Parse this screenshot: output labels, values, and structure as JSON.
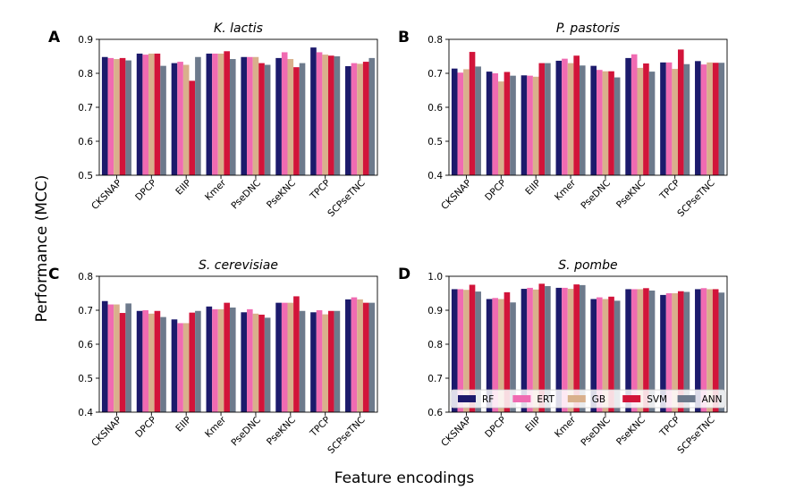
{
  "figure": {
    "ylabel": "Performance (MCC)",
    "xlabel": "Feature encodings"
  },
  "legend": {
    "location": "bottom, inside panel D",
    "entries": [
      "RF",
      "ERT",
      "GB",
      "SVM",
      "ANN"
    ]
  },
  "colors": {
    "RF": "#1c1a6c",
    "ERT": "#f06bb2",
    "GB": "#d9b08c",
    "SVM": "#d2143a",
    "ANN": "#6d7a8c"
  },
  "chart_data": [
    {
      "type": "bar",
      "panel_label": "A",
      "title": "K. lactis",
      "categories": [
        "CKSNAP",
        "DPCP",
        "EIIP",
        "Kmer",
        "PseDNC",
        "PseKNC",
        "TPCP",
        "SCPseTNC"
      ],
      "ylim": [
        0.5,
        0.9
      ],
      "yticks": [
        "0.5",
        "0.6",
        "0.7",
        "0.8",
        "0.9"
      ],
      "series": [
        {
          "name": "RF",
          "values": [
            0.848,
            0.858,
            0.83,
            0.858,
            0.848,
            0.845,
            0.876,
            0.821
          ]
        },
        {
          "name": "ERT",
          "values": [
            0.845,
            0.855,
            0.834,
            0.858,
            0.848,
            0.862,
            0.862,
            0.83
          ]
        },
        {
          "name": "GB",
          "values": [
            0.842,
            0.858,
            0.825,
            0.858,
            0.848,
            0.842,
            0.855,
            0.828
          ]
        },
        {
          "name": "SVM",
          "values": [
            0.845,
            0.858,
            0.778,
            0.865,
            0.83,
            0.818,
            0.852,
            0.834
          ]
        },
        {
          "name": "ANN",
          "values": [
            0.838,
            0.822,
            0.848,
            0.842,
            0.825,
            0.83,
            0.85,
            0.845
          ]
        }
      ]
    },
    {
      "type": "bar",
      "panel_label": "B",
      "title": "P. pastoris",
      "categories": [
        "CKSNAP",
        "DPCP",
        "EIIP",
        "Kmer",
        "PseDNC",
        "PseKNC",
        "TPCP",
        "SCPseTNC"
      ],
      "ylim": [
        0.4,
        0.8
      ],
      "yticks": [
        "0.4",
        "0.5",
        "0.6",
        "0.7",
        "0.8"
      ],
      "series": [
        {
          "name": "RF",
          "values": [
            0.714,
            0.705,
            0.694,
            0.737,
            0.722,
            0.745,
            0.732,
            0.736
          ]
        },
        {
          "name": "ERT",
          "values": [
            0.702,
            0.7,
            0.693,
            0.743,
            0.71,
            0.756,
            0.732,
            0.726
          ]
        },
        {
          "name": "GB",
          "values": [
            0.712,
            0.676,
            0.69,
            0.73,
            0.706,
            0.716,
            0.713,
            0.732
          ]
        },
        {
          "name": "SVM",
          "values": [
            0.763,
            0.704,
            0.73,
            0.752,
            0.706,
            0.729,
            0.77,
            0.731
          ]
        },
        {
          "name": "ANN",
          "values": [
            0.72,
            0.693,
            0.73,
            0.723,
            0.688,
            0.705,
            0.727,
            0.731
          ]
        }
      ]
    },
    {
      "type": "bar",
      "panel_label": "C",
      "title": "S. cerevisiae",
      "categories": [
        "CKSNAP",
        "DPCP",
        "EIIP",
        "Kmer",
        "PseDNC",
        "PseKNC",
        "TPCP",
        "SCPseTNC"
      ],
      "ylim": [
        0.4,
        0.8
      ],
      "yticks": [
        "0.4",
        "0.5",
        "0.6",
        "0.7",
        "0.8"
      ],
      "series": [
        {
          "name": "RF",
          "values": [
            0.727,
            0.698,
            0.673,
            0.711,
            0.694,
            0.722,
            0.694,
            0.732
          ]
        },
        {
          "name": "ERT",
          "values": [
            0.717,
            0.7,
            0.662,
            0.703,
            0.703,
            0.722,
            0.7,
            0.738
          ]
        },
        {
          "name": "GB",
          "values": [
            0.717,
            0.69,
            0.662,
            0.703,
            0.69,
            0.722,
            0.688,
            0.732
          ]
        },
        {
          "name": "SVM",
          "values": [
            0.692,
            0.698,
            0.693,
            0.722,
            0.687,
            0.741,
            0.698,
            0.722
          ]
        },
        {
          "name": "ANN",
          "values": [
            0.72,
            0.68,
            0.698,
            0.708,
            0.678,
            0.698,
            0.698,
            0.722
          ]
        }
      ]
    },
    {
      "type": "bar",
      "panel_label": "D",
      "title": "S. pombe",
      "categories": [
        "CKSNAP",
        "DPCP",
        "EIIP",
        "Kmer",
        "PseDNC",
        "PseKNC",
        "TPCP",
        "SCPseTNC"
      ],
      "ylim": [
        0.6,
        1.0
      ],
      "yticks": [
        "0.6",
        "0.7",
        "0.8",
        "0.9",
        "1.0"
      ],
      "series": [
        {
          "name": "RF",
          "values": [
            0.962,
            0.933,
            0.963,
            0.966,
            0.933,
            0.962,
            0.945,
            0.962
          ]
        },
        {
          "name": "ERT",
          "values": [
            0.962,
            0.936,
            0.966,
            0.966,
            0.938,
            0.962,
            0.95,
            0.965
          ]
        },
        {
          "name": "GB",
          "values": [
            0.96,
            0.933,
            0.961,
            0.963,
            0.933,
            0.962,
            0.95,
            0.962
          ]
        },
        {
          "name": "SVM",
          "values": [
            0.975,
            0.953,
            0.978,
            0.976,
            0.94,
            0.965,
            0.956,
            0.962
          ]
        },
        {
          "name": "ANN",
          "values": [
            0.955,
            0.923,
            0.971,
            0.974,
            0.928,
            0.958,
            0.954,
            0.952
          ]
        }
      ]
    }
  ]
}
